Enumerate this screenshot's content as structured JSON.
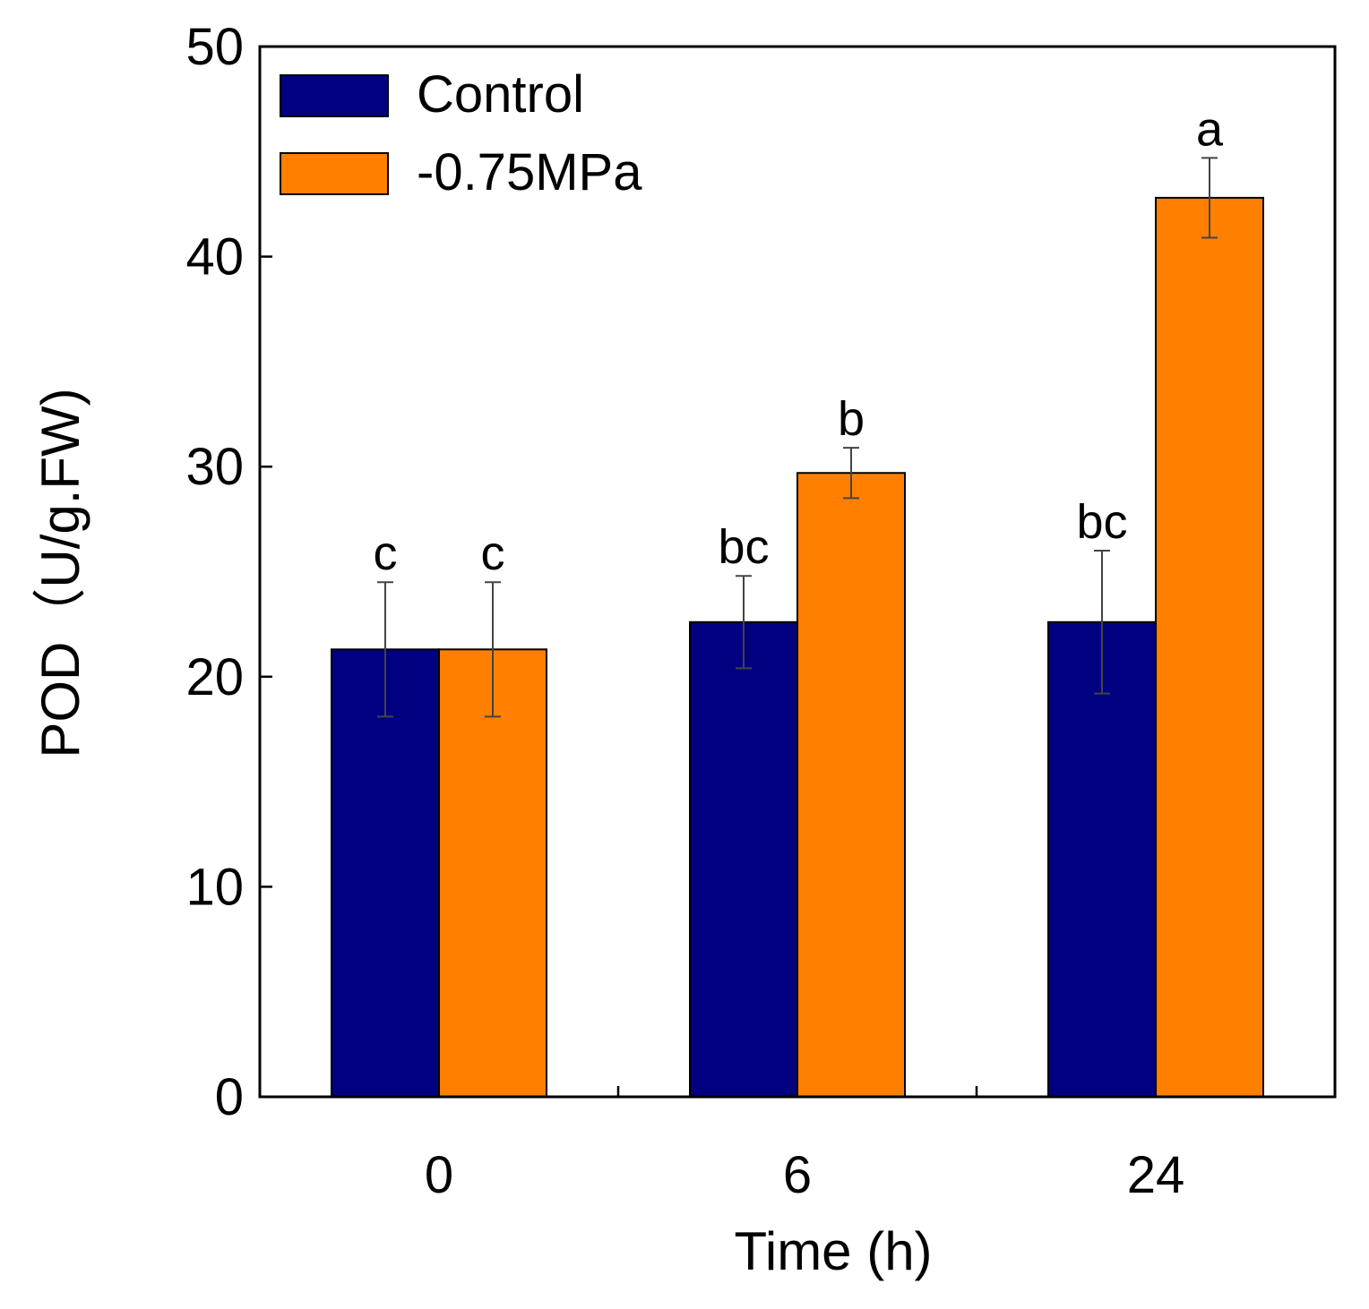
{
  "chart_data": {
    "type": "bar",
    "title": "",
    "xlabel": "Time (h)",
    "ylabel": "POD（U/g.FW)",
    "categories": [
      "0",
      "6",
      "24"
    ],
    "ylim": [
      0,
      50
    ],
    "yticks": [
      0,
      10,
      20,
      30,
      40,
      50
    ],
    "grid": false,
    "legend_position": "top-left",
    "series": [
      {
        "name": "Control",
        "color": "#000080",
        "values": [
          21.3,
          22.6,
          22.6
        ],
        "errors": [
          3.2,
          2.2,
          3.4
        ],
        "labels": [
          "c",
          "bc",
          "bc"
        ]
      },
      {
        "name": "-0.75MPa",
        "color": "#ff8000",
        "values": [
          21.3,
          29.7,
          42.8
        ],
        "errors": [
          3.2,
          1.2,
          1.9
        ],
        "labels": [
          "c",
          "b",
          "a"
        ]
      }
    ]
  }
}
